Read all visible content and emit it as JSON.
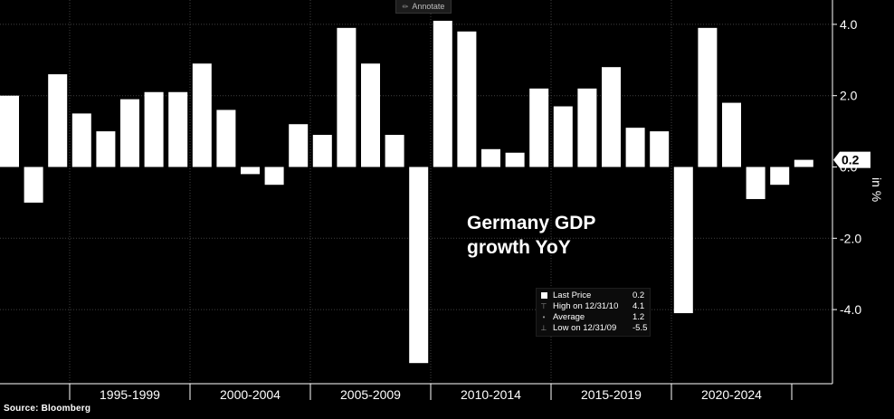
{
  "toolbar": {
    "annotate_label": "Annotate"
  },
  "source": "Source: Bloomberg",
  "chart_data": {
    "type": "bar",
    "title_lines": [
      "Germany GDP",
      "growth YoY"
    ],
    "ylabel": "in %",
    "ylim": [
      -5.8,
      4.5
    ],
    "yticks": [
      4.0,
      2.0,
      -2.0,
      -4.0
    ],
    "ytick_labels": [
      "4.0",
      "2.0",
      "-2.0",
      "-4.0"
    ],
    "x": [
      1992,
      1993,
      1994,
      1995,
      1996,
      1997,
      1998,
      1999,
      2000,
      2001,
      2002,
      2003,
      2004,
      2005,
      2006,
      2007,
      2008,
      2009,
      2010,
      2011,
      2012,
      2013,
      2014,
      2015,
      2016,
      2017,
      2018,
      2019,
      2020,
      2021,
      2022,
      2023,
      2024,
      2025
    ],
    "values": [
      2.0,
      -1.0,
      2.6,
      1.5,
      1.0,
      1.9,
      2.1,
      2.1,
      2.9,
      1.6,
      -0.2,
      -0.5,
      1.2,
      0.9,
      3.9,
      2.9,
      0.9,
      -5.5,
      4.1,
      3.8,
      0.5,
      0.4,
      2.2,
      1.7,
      2.2,
      2.8,
      1.1,
      1.0,
      -4.1,
      3.9,
      1.8,
      -0.9,
      -0.5,
      0.2
    ],
    "x_groups": [
      {
        "label": "1995-1999",
        "start": 1995,
        "end": 1999
      },
      {
        "label": "2000-2004",
        "start": 2000,
        "end": 2004
      },
      {
        "label": "2005-2009",
        "start": 2005,
        "end": 2009
      },
      {
        "label": "2010-2014",
        "start": 2010,
        "end": 2014
      },
      {
        "label": "2015-2019",
        "start": 2015,
        "end": 2019
      },
      {
        "label": "2020-2024",
        "start": 2020,
        "end": 2024
      }
    ],
    "last_price_tag": "0.2",
    "last_price_axis_label": "0.0",
    "legend": [
      {
        "marker": "square",
        "label": "Last Price",
        "value": "0.2"
      },
      {
        "marker": "high",
        "label": "High on 12/31/10",
        "value": "4.1"
      },
      {
        "marker": "avg",
        "label": "Average",
        "value": "1.2"
      },
      {
        "marker": "low",
        "label": "Low on 12/31/09",
        "value": "-5.5"
      }
    ],
    "grid": true,
    "bar_color": "#ffffff",
    "background": "#000000",
    "grid_color": "#404040"
  }
}
